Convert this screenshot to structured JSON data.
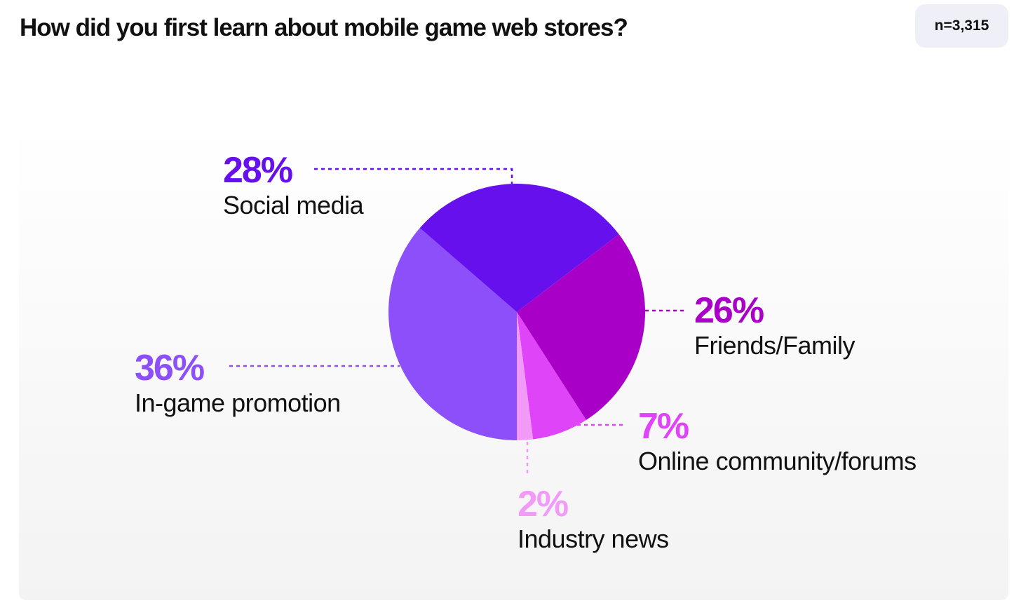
{
  "title": "How did you first learn about mobile game web stores?",
  "sample": "n=3,315",
  "chart_data": {
    "type": "pie",
    "title": "How did you first learn about mobile game web stores?",
    "slices": [
      {
        "label": "In-game promotion",
        "value": 36,
        "display": "36%",
        "color": "#8C4FFA"
      },
      {
        "label": "Social media",
        "value": 28,
        "display": "28%",
        "color": "#6610EE"
      },
      {
        "label": "Friends/Family",
        "value": 26,
        "display": "26%",
        "color": "#A900C8"
      },
      {
        "label": "Online community/forums",
        "value": 7,
        "display": "7%",
        "color": "#E044F8"
      },
      {
        "label": "Industry news",
        "value": 2,
        "display": "2%",
        "color": "#F29AF8"
      }
    ]
  }
}
